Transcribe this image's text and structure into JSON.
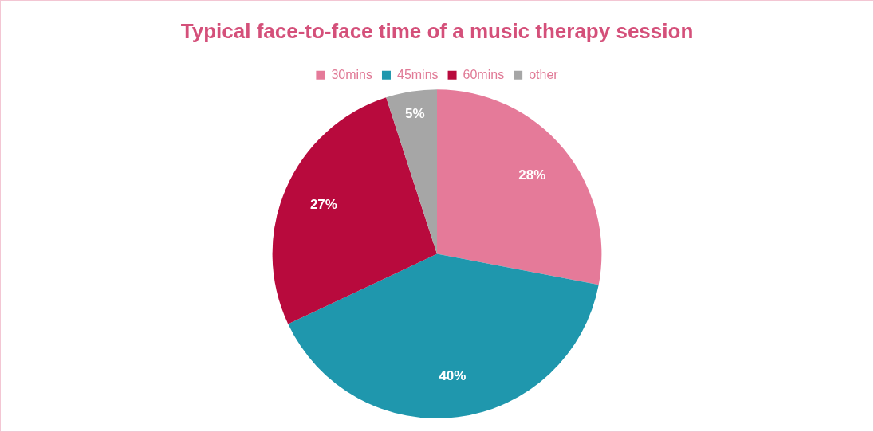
{
  "chart_data": {
    "type": "pie",
    "title": "Typical face-to-face time of a music therapy session",
    "categories": [
      "30mins",
      "45mins",
      "60mins",
      "other"
    ],
    "values": [
      28,
      40,
      27,
      5
    ],
    "colors": [
      "#e57a99",
      "#1f97ad",
      "#b80a3d",
      "#a6a6a6"
    ],
    "legend": "top",
    "data_labels": true,
    "value_labels": [
      "28%",
      "40%",
      "27%",
      "5%"
    ]
  }
}
